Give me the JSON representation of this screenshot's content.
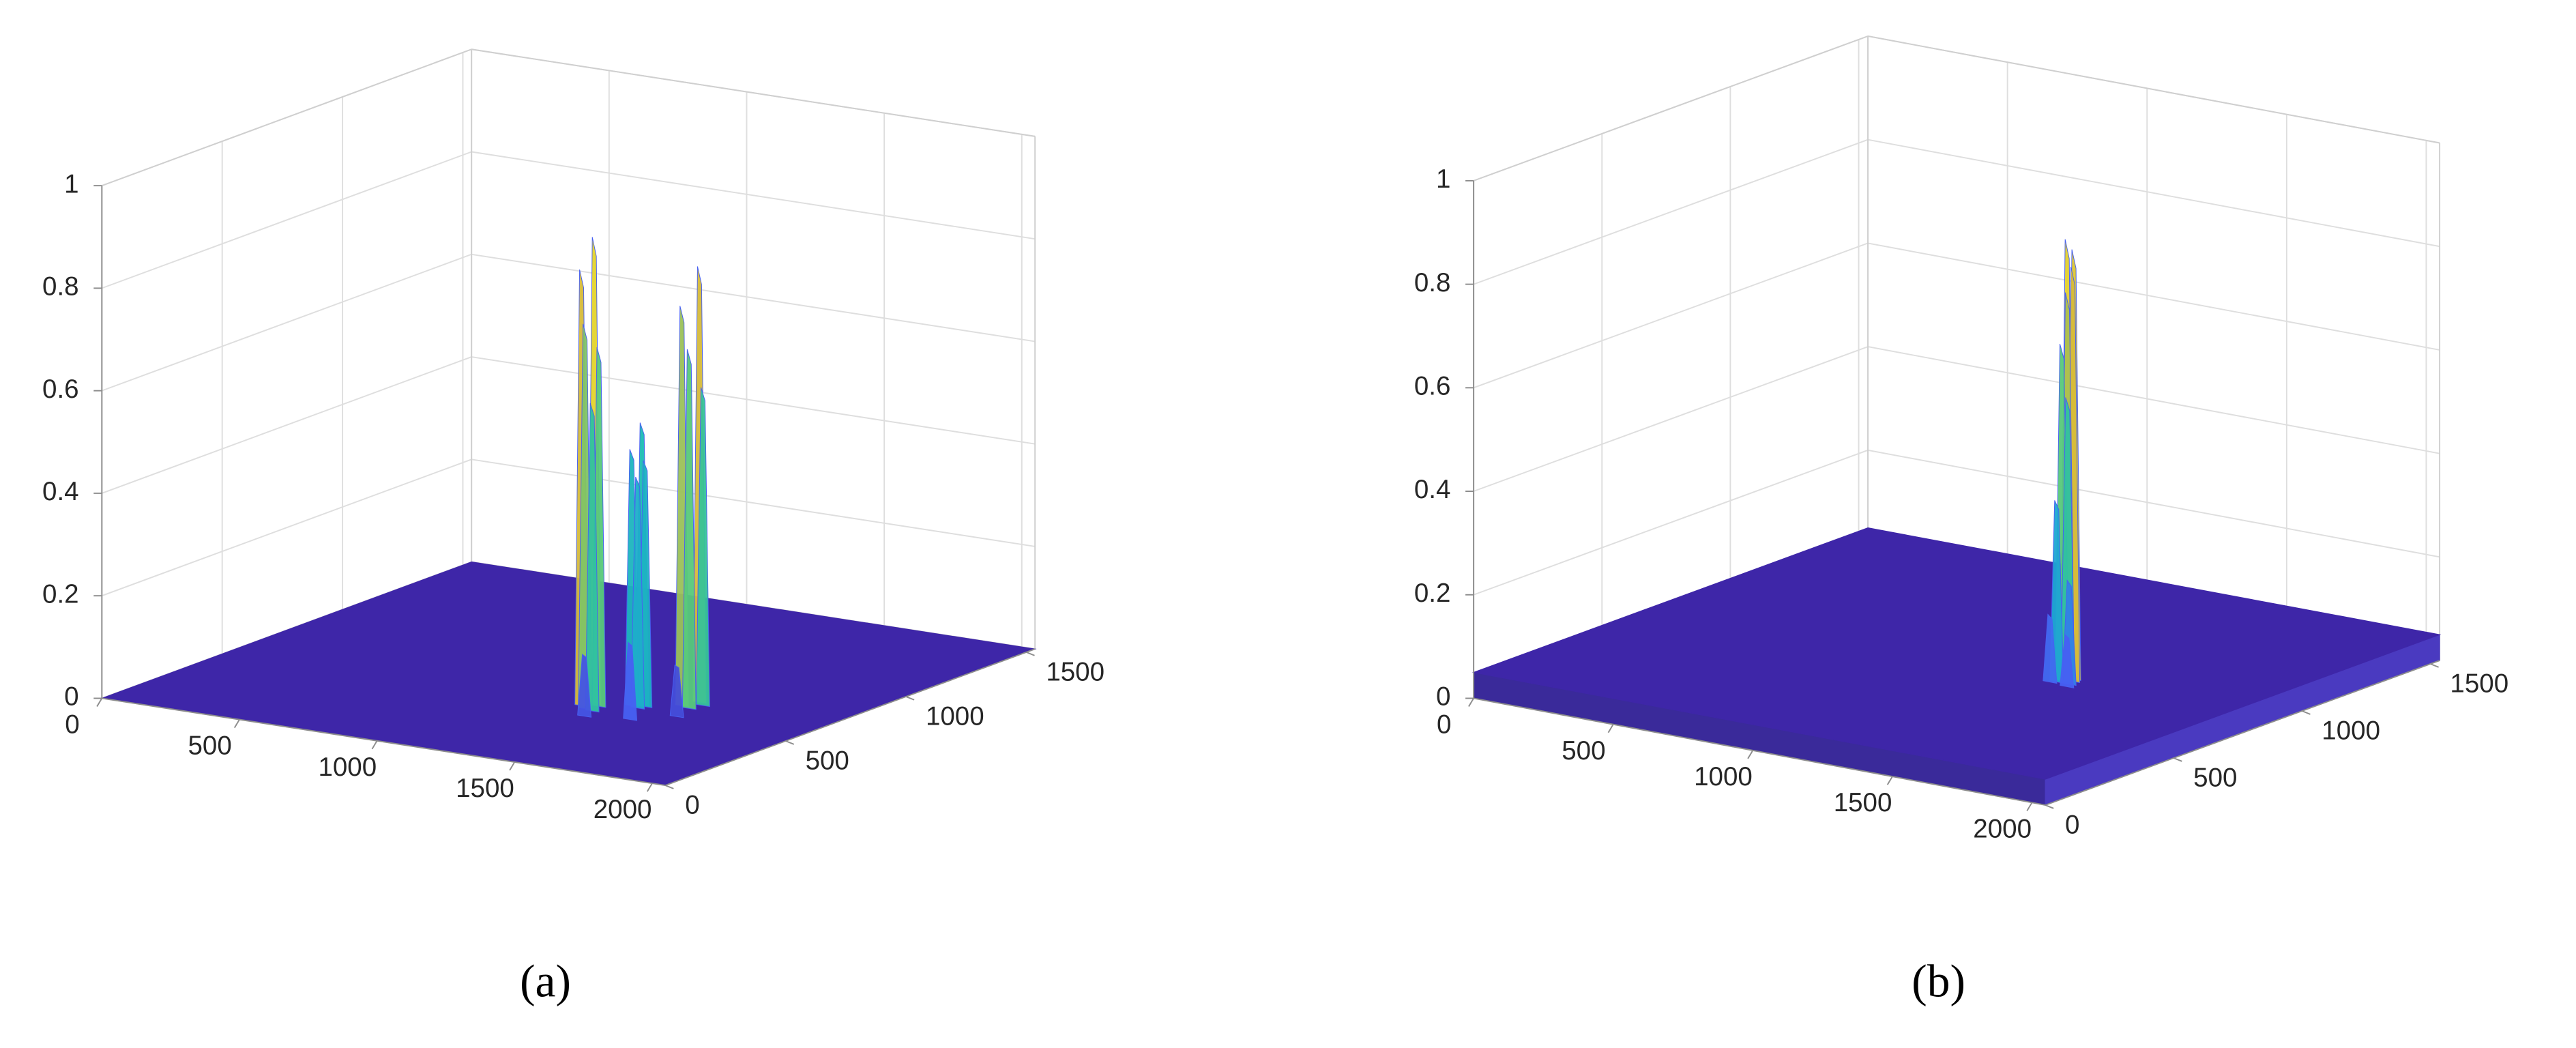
{
  "chart_data": [
    {
      "type": "surface3d",
      "caption": "(a)",
      "xlim": [
        0,
        2048
      ],
      "ylim": [
        0,
        1536
      ],
      "zlim": [
        0,
        1
      ],
      "xticks": [
        0,
        500,
        1000,
        1500,
        2000
      ],
      "yticks": [
        0,
        500,
        1000,
        1500
      ],
      "zticks": [
        0,
        0.2,
        0.4,
        0.6,
        0.8,
        1
      ],
      "grid": true,
      "floor": 0,
      "spikes": {
        "x": [
          1560,
          1590,
          1540,
          1575,
          1300,
          1330,
          1280,
          1310,
          1345,
          1430,
          1450,
          1410,
          1440,
          1360,
          1500,
          1600
        ],
        "y": [
          700,
          680,
          650,
          640,
          560,
          545,
          530,
          510,
          500,
          610,
          600,
          590,
          580,
          450,
          480,
          560
        ],
        "z": [
          0.85,
          0.62,
          0.78,
          0.7,
          0.91,
          0.7,
          0.85,
          0.75,
          0.6,
          0.55,
          0.48,
          0.5,
          0.45,
          0.12,
          0.15,
          0.1
        ]
      }
    },
    {
      "type": "surface3d",
      "caption": "(b)",
      "xlim": [
        0,
        2048
      ],
      "ylim": [
        0,
        1536
      ],
      "zlim": [
        0,
        1
      ],
      "xticks": [
        0,
        500,
        1000,
        1500,
        2000
      ],
      "yticks": [
        0,
        500,
        1000,
        1500
      ],
      "zticks": [
        0,
        0.2,
        0.4,
        0.6,
        0.8,
        1
      ],
      "grid": true,
      "floor": 0.05,
      "spikes": {
        "x": [
          1470,
          1455,
          1480,
          1465,
          1450,
          1475,
          1445,
          1490,
          1430,
          1500
        ],
        "y": [
          740,
          730,
          725,
          720,
          715,
          710,
          700,
          700,
          690,
          680
        ],
        "z": [
          0.88,
          0.9,
          0.85,
          0.8,
          0.7,
          0.6,
          0.4,
          0.25,
          0.18,
          0.15
        ]
      }
    }
  ]
}
